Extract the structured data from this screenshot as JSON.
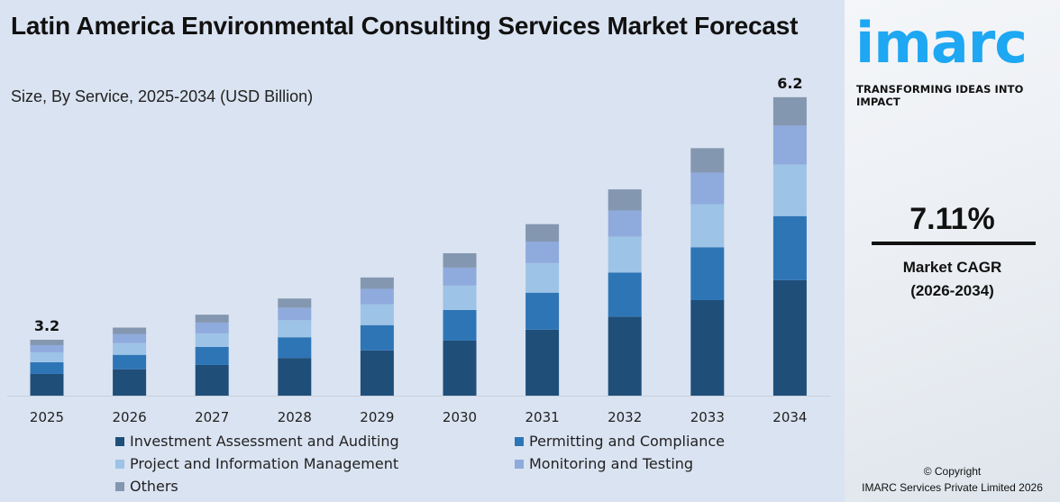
{
  "chart_data": {
    "type": "bar",
    "stacked": true,
    "title": "Latin America Environmental Consulting Services Market Forecast",
    "subtitle": "Size, By Service, 2025-2034 (USD Billion)",
    "categories": [
      "2025",
      "2026",
      "2027",
      "2028",
      "2029",
      "2030",
      "2031",
      "2032",
      "2033",
      "2034"
    ],
    "series": [
      {
        "name": "Investment Assessment and Auditing",
        "color": "#1f4e79",
        "values": [
          1.24,
          1.3,
          1.33,
          1.44,
          1.52,
          1.65,
          1.78,
          1.94,
          2.15,
          2.4
        ]
      },
      {
        "name": "Permitting and Compliance",
        "color": "#2e75b6",
        "values": [
          0.67,
          0.71,
          0.78,
          0.79,
          0.85,
          0.92,
          1.0,
          1.08,
          1.19,
          1.33
        ]
      },
      {
        "name": "Project and Information Management",
        "color": "#9dc3e6",
        "values": [
          0.57,
          0.58,
          0.59,
          0.65,
          0.7,
          0.73,
          0.8,
          0.88,
          0.97,
          1.07
        ]
      },
      {
        "name": "Monitoring and Testing",
        "color": "#8faadc",
        "values": [
          0.41,
          0.45,
          0.47,
          0.48,
          0.52,
          0.54,
          0.58,
          0.64,
          0.71,
          0.81
        ]
      },
      {
        "name": "Others",
        "color": "#8497b0",
        "values": [
          0.31,
          0.31,
          0.34,
          0.35,
          0.38,
          0.43,
          0.47,
          0.52,
          0.55,
          0.59
        ]
      }
    ],
    "data_labels": {
      "2025": "3.2",
      "2034": "6.2"
    },
    "grid": false,
    "legend_position": "bottom"
  },
  "side": {
    "logo": "imarc",
    "tagline": "TRANSFORMING IDEAS INTO IMPACT",
    "cagr_value": "7.11%",
    "cagr_label": "Market CAGR",
    "cagr_period": "(2026-2034)",
    "copyright": "© Copyright",
    "company": "IMARC Services Private Limited 2026",
    "brand_color": "#1ea7f2"
  }
}
